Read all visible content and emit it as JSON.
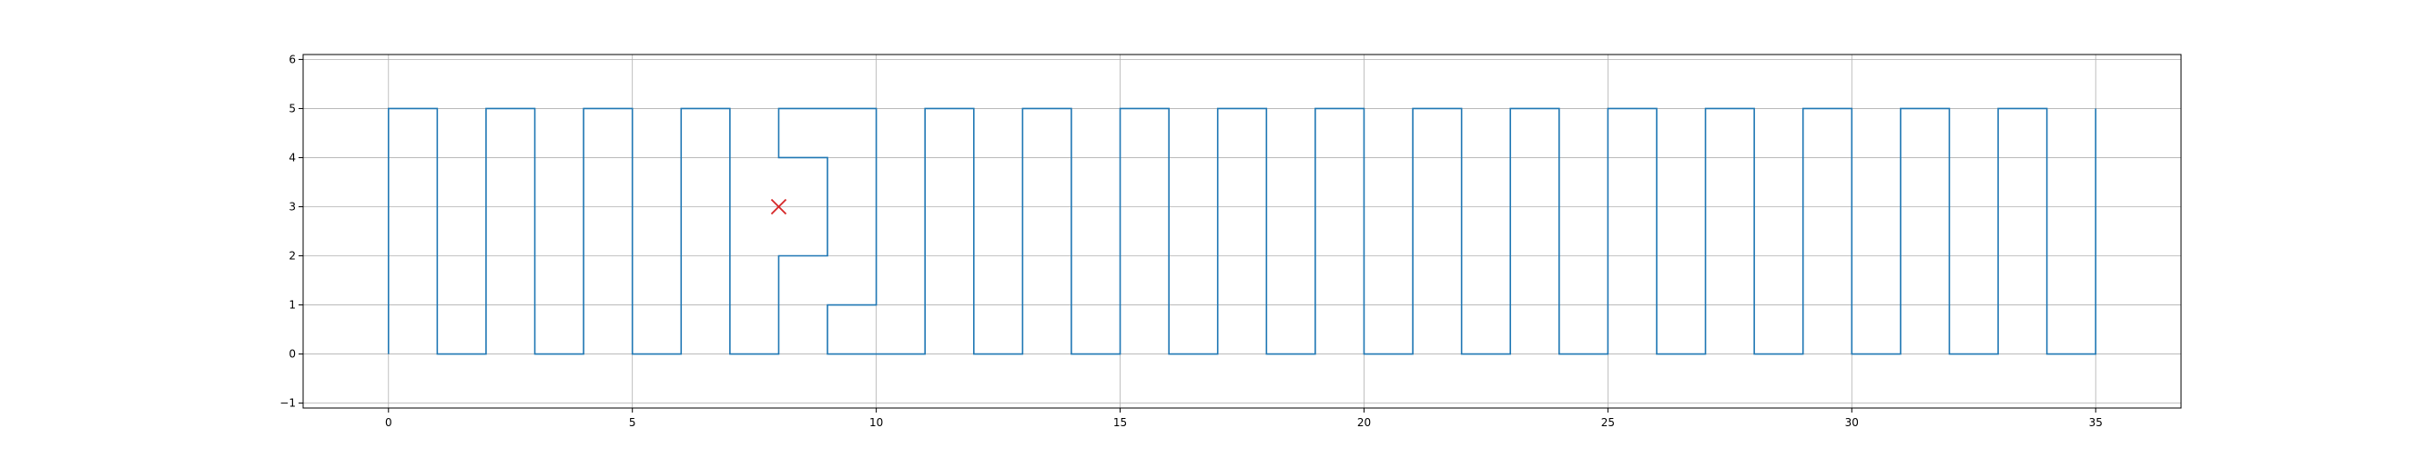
{
  "chart_data": {
    "type": "line",
    "title": "",
    "xlabel": "",
    "ylabel": "",
    "xlim": [
      -1.75,
      36.75
    ],
    "ylim": [
      -1.1,
      6.1
    ],
    "xticks": [
      0,
      5,
      10,
      15,
      20,
      25,
      30,
      35
    ],
    "yticks": [
      -1,
      0,
      1,
      2,
      3,
      4,
      5,
      6
    ],
    "ytick_labels": [
      "−1",
      "0",
      "1",
      "2",
      "3",
      "4",
      "5",
      "6"
    ],
    "grid": true,
    "series": [
      {
        "type": "line",
        "color": "#1f77b4",
        "points": [
          [
            0,
            0
          ],
          [
            0,
            5
          ],
          [
            1,
            5
          ],
          [
            1,
            0
          ],
          [
            2,
            0
          ],
          [
            2,
            5
          ],
          [
            3,
            5
          ],
          [
            3,
            0
          ],
          [
            4,
            0
          ],
          [
            4,
            5
          ],
          [
            5,
            5
          ],
          [
            5,
            0
          ],
          [
            6,
            0
          ],
          [
            6,
            5
          ],
          [
            7,
            5
          ],
          [
            7,
            0
          ],
          [
            8,
            0
          ],
          [
            8,
            2
          ],
          [
            9,
            2
          ],
          [
            9,
            4
          ],
          [
            8,
            4
          ],
          [
            8,
            5
          ],
          [
            10,
            5
          ],
          [
            10,
            1
          ],
          [
            9,
            1
          ],
          [
            9,
            0
          ],
          [
            11,
            0
          ],
          [
            11,
            5
          ],
          [
            12,
            5
          ],
          [
            12,
            0
          ],
          [
            13,
            0
          ],
          [
            13,
            5
          ],
          [
            14,
            5
          ],
          [
            14,
            0
          ],
          [
            15,
            0
          ],
          [
            15,
            5
          ],
          [
            16,
            5
          ],
          [
            16,
            0
          ],
          [
            17,
            0
          ],
          [
            17,
            5
          ],
          [
            18,
            5
          ],
          [
            18,
            0
          ],
          [
            19,
            0
          ],
          [
            19,
            5
          ],
          [
            20,
            5
          ],
          [
            20,
            0
          ],
          [
            21,
            0
          ],
          [
            21,
            5
          ],
          [
            22,
            5
          ],
          [
            22,
            0
          ],
          [
            23,
            0
          ],
          [
            23,
            5
          ],
          [
            24,
            5
          ],
          [
            24,
            0
          ],
          [
            25,
            0
          ],
          [
            25,
            5
          ],
          [
            26,
            5
          ],
          [
            26,
            0
          ],
          [
            27,
            0
          ],
          [
            27,
            5
          ],
          [
            28,
            5
          ],
          [
            28,
            0
          ],
          [
            29,
            0
          ],
          [
            29,
            5
          ],
          [
            30,
            5
          ],
          [
            30,
            0
          ],
          [
            31,
            0
          ],
          [
            31,
            5
          ],
          [
            32,
            5
          ],
          [
            32,
            0
          ],
          [
            33,
            0
          ],
          [
            33,
            5
          ],
          [
            34,
            5
          ],
          [
            34,
            0
          ],
          [
            35,
            0
          ],
          [
            35,
            5
          ]
        ]
      },
      {
        "type": "scatter",
        "marker": "x",
        "color": "#d62728",
        "points": [
          [
            8,
            3
          ]
        ]
      }
    ]
  }
}
